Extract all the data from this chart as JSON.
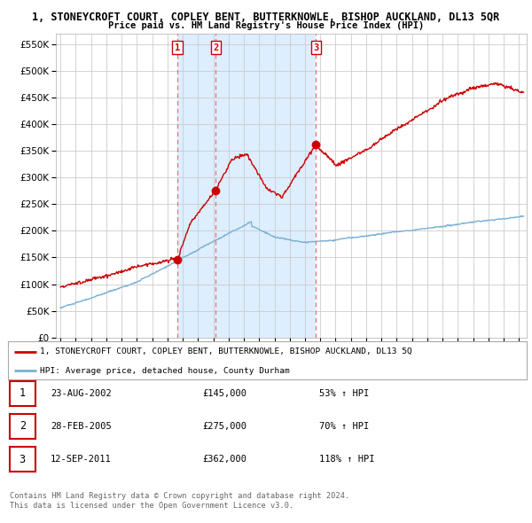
{
  "title": "1, STONEYCROFT COURT, COPLEY BENT, BUTTERKNOWLE, BISHOP AUCKLAND, DL13 5QR",
  "subtitle": "Price paid vs. HM Land Registry's House Price Index (HPI)",
  "ylabel_ticks": [
    0,
    50000,
    100000,
    150000,
    200000,
    250000,
    300000,
    350000,
    400000,
    450000,
    500000,
    550000
  ],
  "ylim": [
    0,
    570000
  ],
  "xlim_start": 1994.7,
  "xlim_end": 2025.5,
  "sale_dates": [
    2002.64,
    2005.16,
    2011.71
  ],
  "sale_prices": [
    145000,
    275000,
    362000
  ],
  "sale_labels": [
    "1",
    "2",
    "3"
  ],
  "sale_date_strings": [
    "23-AUG-2002",
    "28-FEB-2005",
    "12-SEP-2011"
  ],
  "sale_price_strings": [
    "£145,000",
    "£275,000",
    "£362,000"
  ],
  "sale_hpi_strings": [
    "53% ↑ HPI",
    "70% ↑ HPI",
    "118% ↑ HPI"
  ],
  "red_line_color": "#cc0000",
  "blue_line_color": "#7ab0d4",
  "vline_color": "#e87070",
  "shade_color": "#ddeeff",
  "background_color": "#ffffff",
  "grid_color": "#cccccc",
  "legend_label_red": "1, STONEYCROFT COURT, COPLEY BENT, BUTTERKNOWLE, BISHOP AUCKLAND, DL13 5Q",
  "legend_label_blue": "HPI: Average price, detached house, County Durham",
  "footer1": "Contains HM Land Registry data © Crown copyright and database right 2024.",
  "footer2": "This data is licensed under the Open Government Licence v3.0."
}
